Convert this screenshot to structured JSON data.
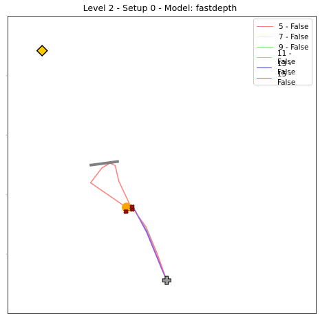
{
  "chart_data": {
    "type": "line",
    "title": "Level 2 - Setup 0 - Model: fastdepth",
    "xlabel": "",
    "ylabel": "",
    "xlim": [
      0,
      100
    ],
    "ylim": [
      0,
      100
    ],
    "grid": false,
    "legend_position": "top-right",
    "series": [
      {
        "name": "5 - False",
        "color": "#ff7f7f",
        "points": [
          [
            51.5,
            11.2
          ],
          [
            48.5,
            20.0
          ],
          [
            44.8,
            29.2
          ],
          [
            39.4,
            37.0
          ],
          [
            36.0,
            44.5
          ],
          [
            34.8,
            49.8
          ],
          [
            33.2,
            50.6
          ],
          [
            30.5,
            49.0
          ],
          [
            26.8,
            44.0
          ],
          [
            38.3,
            35.8
          ],
          [
            40.0,
            35.6
          ]
        ]
      },
      {
        "name": "7 - False",
        "color": "#ffff66",
        "points": [
          [
            51.5,
            11.2
          ],
          [
            49.0,
            17.5
          ],
          [
            45.0,
            27.8
          ],
          [
            40.5,
            35.6
          ]
        ]
      },
      {
        "name": "9 - False",
        "color": "#77ee77",
        "points": [
          [
            51.5,
            11.2
          ],
          [
            49.2,
            17.0
          ],
          [
            45.1,
            27.7
          ],
          [
            40.6,
            35.7
          ]
        ]
      },
      {
        "name": "11 - False",
        "color": "#77ddee",
        "points": [
          [
            51.5,
            11.2
          ],
          [
            49.3,
            16.8
          ],
          [
            45.2,
            27.6
          ],
          [
            40.6,
            35.8
          ]
        ]
      },
      {
        "name": "13 - False",
        "color": "#3d52b8",
        "points": [
          [
            51.5,
            11.2
          ],
          [
            50.0,
            14.8
          ],
          [
            45.0,
            27.4
          ],
          [
            40.6,
            35.9
          ]
        ]
      },
      {
        "name": "15 - False",
        "color": "#bb55dd",
        "points": [
          [
            51.5,
            11.2
          ],
          [
            49.8,
            15.5
          ],
          [
            45.1,
            27.5
          ],
          [
            40.6,
            35.8
          ]
        ]
      }
    ],
    "markers": {
      "start": {
        "x": 51.5,
        "y": 11.2,
        "shape": "cross",
        "color": "#999999"
      },
      "goal": {
        "x": 11.1,
        "y": 88.4,
        "shape": "diamond",
        "color": "#ffcc00"
      },
      "current": {
        "x": 38.5,
        "y": 35.7,
        "shape": "circle",
        "color": "#ffa500"
      },
      "end_points": [
        {
          "x": 38.3,
          "y": 34.3,
          "shape": "x",
          "color": "#cc0000"
        },
        {
          "x": 40.3,
          "y": 35.1,
          "shape": "x",
          "color": "#cc0000"
        },
        {
          "x": 40.3,
          "y": 35.9,
          "shape": "x",
          "color": "#cc0000"
        }
      ]
    },
    "obstacles": [
      {
        "from": [
          26.5,
          49.9
        ],
        "to": [
          36.0,
          51.2
        ],
        "color": "#808080"
      }
    ]
  }
}
